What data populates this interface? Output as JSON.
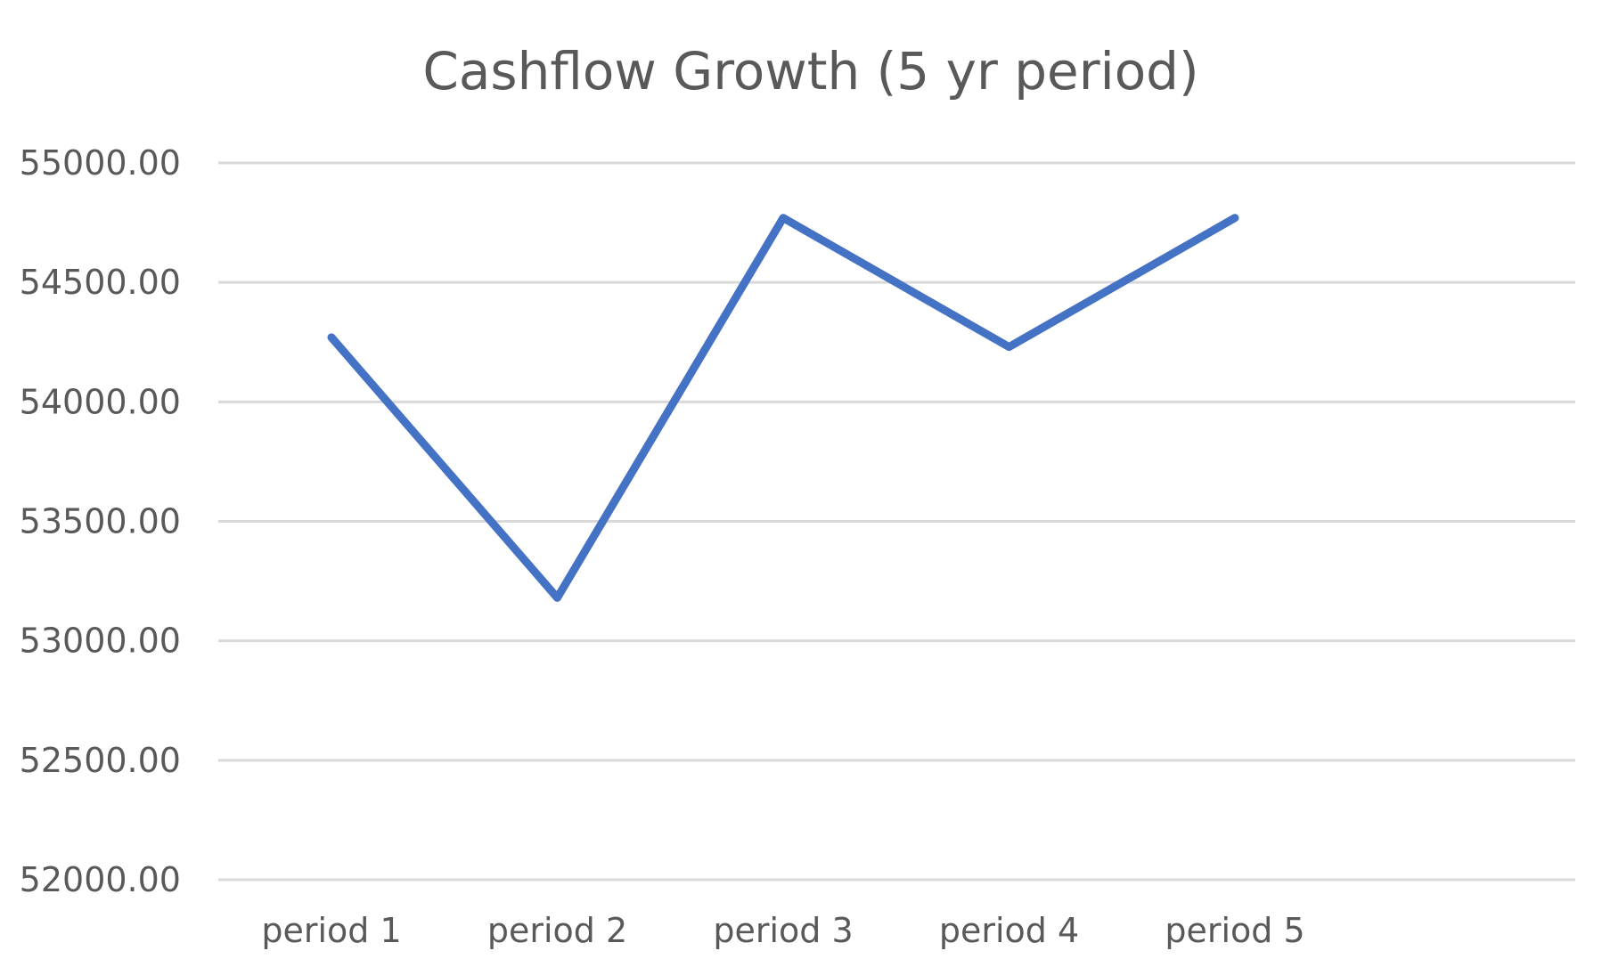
{
  "chart_data": {
    "type": "line",
    "title": "Cashflow Growth (5 yr period)",
    "xlabel": "",
    "ylabel": "",
    "categories": [
      "period 1",
      "period 2",
      "period 3",
      "period 4",
      "period 5"
    ],
    "series": [
      {
        "values": [
          54270,
          53180,
          54770,
          54230,
          54770
        ],
        "color": "#4472c4"
      }
    ],
    "ylim": [
      52000,
      55000
    ],
    "y_ticks": [
      "55000.00",
      "54500.00",
      "54000.00",
      "53500.00",
      "53000.00",
      "52500.00",
      "52000.00"
    ],
    "grid": true,
    "legend": "none"
  }
}
